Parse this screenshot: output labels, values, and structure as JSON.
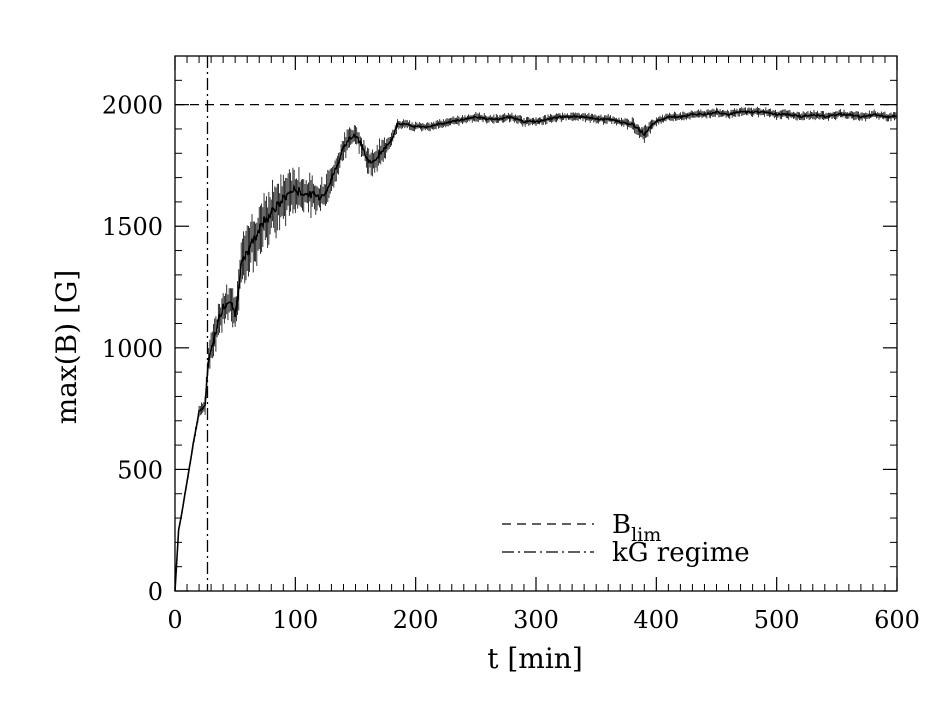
{
  "chart_data": {
    "type": "line",
    "xlabel": "t [min]",
    "ylabel": "max(B) [G]",
    "xlim": [
      0,
      600
    ],
    "ylim": [
      0,
      2200
    ],
    "xticks": [
      0,
      100,
      200,
      300,
      400,
      500,
      600
    ],
    "yticks": [
      0,
      500,
      1000,
      1500,
      2000
    ],
    "grid": false,
    "legend_position": "bottom-right",
    "legend": [
      {
        "label_main": "B",
        "label_sub": "lim",
        "style": "dashed"
      },
      {
        "label_main": "kG regime",
        "label_sub": "",
        "style": "dash-dot"
      }
    ],
    "reference_lines": {
      "b_lim": 2000,
      "kg_regime_t": 27
    },
    "series": [
      {
        "style": "solid",
        "color": "#000000",
        "x": [
          0,
          3,
          6,
          10,
          15,
          20,
          25,
          28,
          32,
          36,
          40,
          45,
          50,
          55,
          60,
          65,
          70,
          75,
          80,
          85,
          90,
          95,
          100,
          105,
          110,
          115,
          120,
          125,
          130,
          135,
          140,
          145,
          150,
          155,
          160,
          165,
          170,
          175,
          180,
          185,
          190,
          200,
          210,
          220,
          230,
          240,
          250,
          260,
          270,
          280,
          290,
          300,
          310,
          320,
          330,
          340,
          350,
          360,
          370,
          380,
          390,
          395,
          400,
          410,
          420,
          430,
          440,
          450,
          460,
          470,
          480,
          490,
          500,
          510,
          520,
          530,
          540,
          550,
          560,
          570,
          580,
          590,
          600
        ],
        "y": [
          0,
          250,
          330,
          450,
          600,
          740,
          760,
          960,
          1030,
          1110,
          1170,
          1200,
          1140,
          1330,
          1390,
          1440,
          1490,
          1530,
          1560,
          1580,
          1610,
          1640,
          1650,
          1640,
          1630,
          1630,
          1620,
          1640,
          1690,
          1760,
          1820,
          1860,
          1870,
          1840,
          1770,
          1760,
          1800,
          1820,
          1860,
          1920,
          1920,
          1910,
          1910,
          1920,
          1930,
          1940,
          1950,
          1940,
          1940,
          1950,
          1930,
          1930,
          1940,
          1950,
          1950,
          1950,
          1940,
          1940,
          1930,
          1920,
          1880,
          1910,
          1930,
          1950,
          1950,
          1960,
          1960,
          1970,
          1960,
          1970,
          1970,
          1970,
          1960,
          1960,
          1950,
          1960,
          1950,
          1960,
          1960,
          1950,
          1960,
          1950,
          1955
        ],
        "noise_band": [
          0,
          8,
          10,
          14,
          20,
          25,
          40,
          70,
          80,
          80,
          90,
          90,
          90,
          110,
          120,
          125,
          130,
          130,
          130,
          120,
          110,
          110,
          100,
          90,
          85,
          80,
          75,
          80,
          70,
          60,
          55,
          55,
          50,
          50,
          60,
          60,
          55,
          50,
          40,
          25,
          20,
          20,
          20,
          20,
          20,
          20,
          20,
          20,
          20,
          20,
          20,
          20,
          20,
          20,
          20,
          20,
          20,
          20,
          20,
          25,
          40,
          30,
          20,
          20,
          20,
          20,
          20,
          20,
          20,
          20,
          20,
          20,
          20,
          20,
          20,
          20,
          20,
          20,
          20,
          20,
          20,
          20,
          20
        ]
      }
    ]
  }
}
